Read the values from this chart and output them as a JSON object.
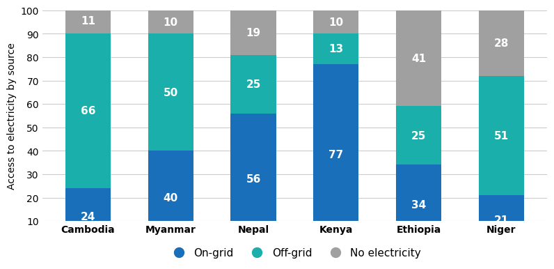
{
  "categories": [
    "Cambodia",
    "Myanmar",
    "Nepal",
    "Kenya",
    "Ethiopia",
    "Niger"
  ],
  "on_grid": [
    24,
    40,
    56,
    77,
    34,
    21
  ],
  "off_grid": [
    66,
    50,
    25,
    13,
    25,
    51
  ],
  "no_elec": [
    11,
    10,
    19,
    10,
    41,
    28
  ],
  "colors": {
    "on_grid": "#1a6fba",
    "off_grid": "#1aafaa",
    "no_elec": "#a0a0a0"
  },
  "ylabel": "Access to electricity by source",
  "ylim": [
    10,
    100
  ],
  "yticks": [
    10,
    20,
    30,
    40,
    50,
    60,
    70,
    80,
    90,
    100
  ],
  "legend_labels": [
    "On-grid",
    "Off-grid",
    "No electricity"
  ],
  "bar_width": 0.55,
  "label_fontsize": 11,
  "tick_fontsize": 10,
  "ylabel_fontsize": 10,
  "legend_fontsize": 11,
  "background_color": "#ffffff"
}
